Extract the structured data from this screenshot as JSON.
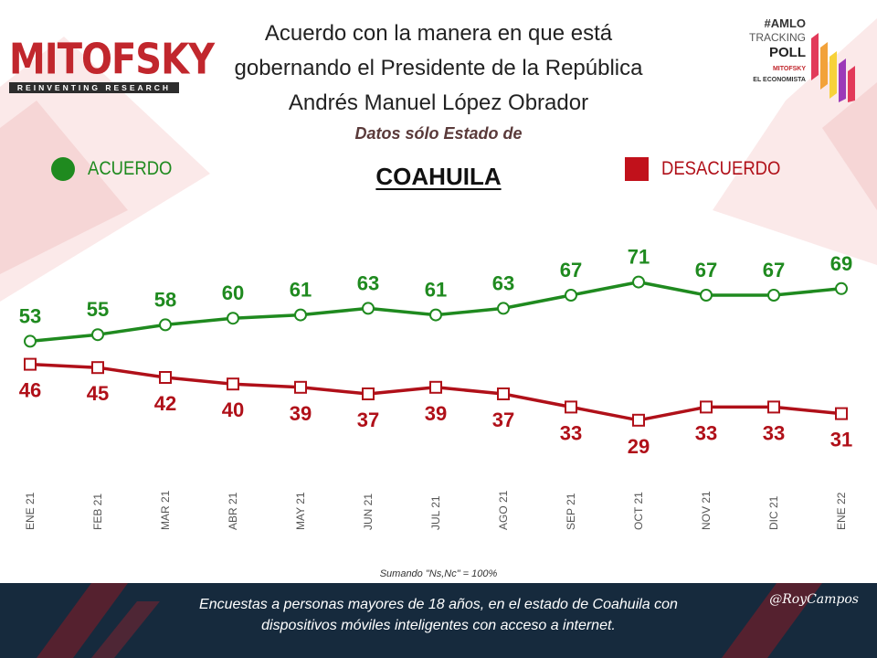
{
  "logo": {
    "name": "MITOFSKY",
    "tagline": "REINVENTING RESEARCH"
  },
  "title_lines": [
    "Acuerdo con la manera en que está",
    "gobernando el Presidente de la República",
    "Andrés Manuel López Obrador"
  ],
  "subtitle": "Datos sólo Estado de",
  "state": "COAHUILA",
  "badge": {
    "tag": "#AMLO",
    "tracking": "TRACKING",
    "poll": "POLL",
    "brand1": "MITOFSKY",
    "brand2": "EL ECONOMISTA"
  },
  "footnote": "Sumando \"Ns,Nc\" = 100%",
  "footer": {
    "line1": "Encuestas a personas mayores de 18 años, en el estado de Coahuila con",
    "line2": "dispositivos móviles inteligentes con acceso a internet."
  },
  "signature": "@RoyCampos",
  "colors": {
    "acuerdo": "#1f8a1f",
    "desacuerdo": "#b01019",
    "brand": "#c1272d",
    "footer": "#162a3d"
  },
  "chart_data": {
    "type": "line",
    "title": "Acuerdo con la manera en que está gobernando el Presidente de la República Andrés Manuel López Obrador",
    "categories": [
      "ENE 21",
      "FEB 21",
      "MAR 21",
      "ABR 21",
      "MAY 21",
      "JUN 21",
      "JUL 21",
      "AGO 21",
      "SEP 21",
      "OCT 21",
      "NOV 21",
      "DIC 21",
      "ENE 22"
    ],
    "series": [
      {
        "name": "ACUERDO",
        "marker": "circle",
        "values": [
          53,
          55,
          58,
          60,
          61,
          63,
          61,
          63,
          67,
          71,
          67,
          67,
          69
        ]
      },
      {
        "name": "DESACUERDO",
        "marker": "square",
        "values": [
          46,
          45,
          42,
          40,
          39,
          37,
          39,
          37,
          33,
          29,
          33,
          33,
          31
        ]
      }
    ],
    "legend_position": "top",
    "grid": false,
    "data_labels": true
  }
}
